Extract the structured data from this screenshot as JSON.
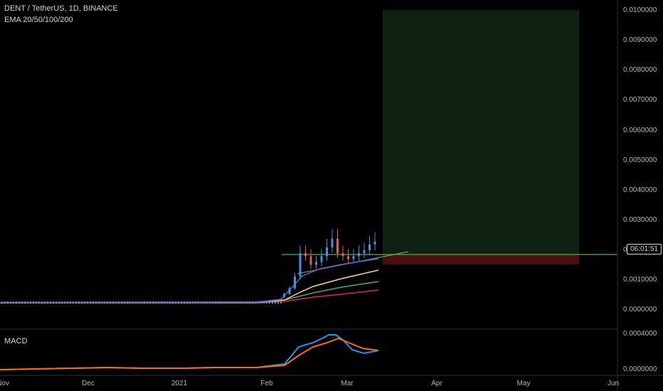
{
  "header": {
    "symbol_line": "DENT / TetherUS, 1D, BINANCE",
    "indicator_line": "EMA 20/50/100/200"
  },
  "macd": {
    "label": "MACD"
  },
  "price_axis": {
    "labels": [
      "0.0100000",
      "0.0090000",
      "0.0080000",
      "0.0070000",
      "0.0060000",
      "0.0050000",
      "0.0040000",
      "0.0030000",
      "0.0020000",
      "0.0010000",
      "0.0000000"
    ]
  },
  "macd_axis": {
    "labels": [
      "0.0004000",
      "0.0000000"
    ]
  },
  "time_axis": {
    "labels": [
      "Nov",
      "Dec",
      "2021",
      "Feb",
      "Mar",
      "Apr",
      "May",
      "Jun"
    ]
  },
  "countdown": "06:01:51",
  "colors": {
    "background": "#000000",
    "up": "#4a90e2",
    "down": "#e05a5a",
    "target_zone": "#0f2211",
    "stop_zone": "#4a1010",
    "level_line": "#4caf50",
    "ema20": "#6a5acd",
    "ema50": "#f4e06d",
    "ema100": "#3cb371",
    "ema200": "#e0245e",
    "macd_line": "#2196f3",
    "signal_line": "#ff6d00"
  },
  "chart_data": {
    "type": "candlestick",
    "title": "DENT / TetherUS, 1D, BINANCE",
    "ylim": [
      0,
      0.01
    ],
    "x_ticks": [
      "Nov",
      "Dec",
      "2021",
      "Feb",
      "Mar",
      "Apr",
      "May",
      "Jun"
    ],
    "ema_periods": [
      20,
      50,
      100,
      200
    ],
    "horizontal_level": 0.00175,
    "target_zone": [
      0.00175,
      0.01
    ],
    "stop_zone": [
      0.0015,
      0.00175
    ],
    "recent_closes": [
      0.0003,
      0.0005,
      0.0009,
      0.0017,
      0.0016,
      0.0013,
      0.0014,
      0.0016,
      0.0019,
      0.0022,
      0.0017,
      0.0016,
      0.0015,
      0.0016,
      0.0017,
      0.0018,
      0.002,
      0.0021
    ],
    "macd_ylim": [
      0,
      0.0004
    ]
  }
}
